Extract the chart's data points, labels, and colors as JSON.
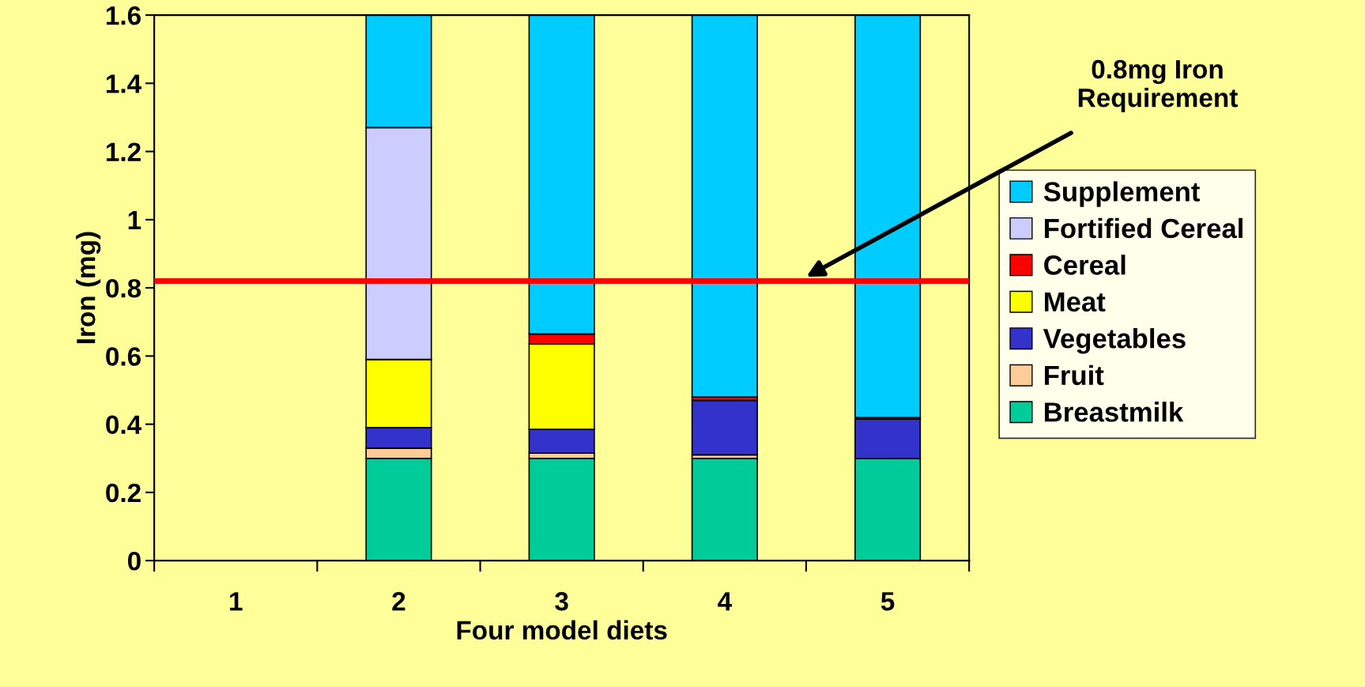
{
  "chart_data": {
    "type": "bar",
    "stacked": true,
    "xlabel": "Four model diets",
    "ylabel": "Iron (mg)",
    "categories": [
      "1",
      "2",
      "3",
      "4",
      "5"
    ],
    "series": [
      {
        "name": "Breastmilk",
        "color": "#00cc99",
        "values": [
          null,
          0.3,
          0.3,
          0.3,
          0.3
        ]
      },
      {
        "name": "Fruit",
        "color": "#ffcc99",
        "values": [
          null,
          0.03,
          0.015,
          0.01,
          0
        ]
      },
      {
        "name": "Vegetables",
        "color": "#3333cc",
        "values": [
          null,
          0.06,
          0.07,
          0.16,
          0.115
        ]
      },
      {
        "name": "Meat",
        "color": "#ffff00",
        "values": [
          null,
          0.2,
          0.25,
          0,
          0
        ]
      },
      {
        "name": "Cereal",
        "color": "#ff0000",
        "values": [
          null,
          0,
          0.03,
          0.01,
          0.005
        ]
      },
      {
        "name": "Fortified Cereal",
        "color": "#ccccff",
        "values": [
          null,
          0.68,
          0,
          0,
          0
        ]
      },
      {
        "name": "Supplement",
        "color": "#00ccff",
        "values": [
          null,
          0.33,
          0.935,
          1.12,
          1.18
        ]
      }
    ],
    "ylim": [
      0,
      1.6
    ],
    "yticks": [
      0,
      0.2,
      0.4,
      0.6,
      0.8,
      1,
      1.2,
      1.4,
      1.6
    ],
    "ref_lines": [
      {
        "axis": "y",
        "value": 0.82,
        "color": "#ff0000"
      }
    ],
    "annotations": [
      "0.8mg Iron\nRequirement"
    ],
    "legend": "right",
    "grid": false
  }
}
